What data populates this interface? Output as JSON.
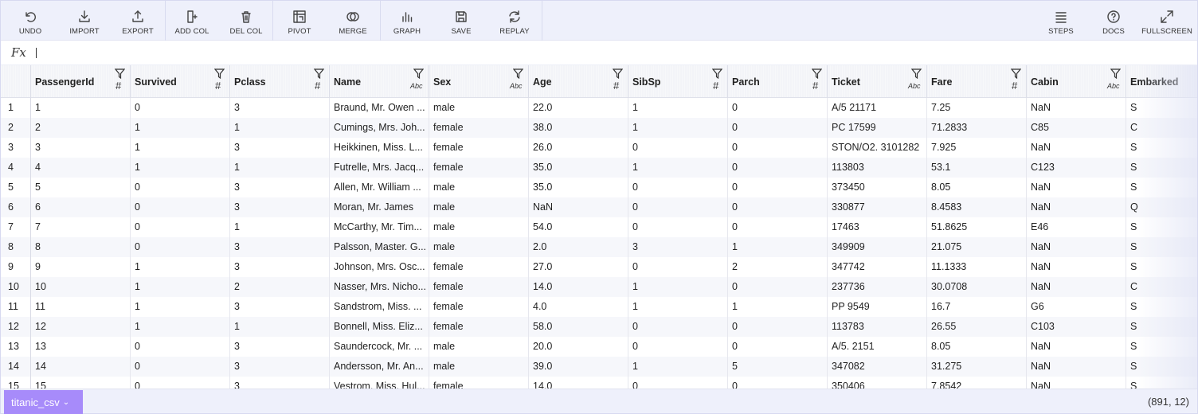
{
  "toolbar": {
    "left": [
      {
        "label": "UNDO",
        "icon": "undo-icon"
      },
      {
        "label": "IMPORT",
        "icon": "import-icon"
      },
      {
        "label": "EXPORT",
        "icon": "export-icon"
      },
      {
        "label": "ADD COL",
        "icon": "add-column-icon"
      },
      {
        "label": "DEL COL",
        "icon": "delete-column-icon"
      },
      {
        "label": "PIVOT",
        "icon": "pivot-icon"
      },
      {
        "label": "MERGE",
        "icon": "merge-icon"
      },
      {
        "label": "GRAPH",
        "icon": "graph-icon"
      },
      {
        "label": "SAVE",
        "icon": "save-icon"
      },
      {
        "label": "REPLAY",
        "icon": "replay-icon"
      }
    ],
    "right": [
      {
        "label": "STEPS",
        "icon": "steps-icon"
      },
      {
        "label": "DOCS",
        "icon": "docs-icon"
      },
      {
        "label": "FULLSCREEN",
        "icon": "fullscreen-icon"
      }
    ]
  },
  "formula_bar": {
    "label": "Fx"
  },
  "columns": [
    {
      "name": "PassengerId",
      "type": "#"
    },
    {
      "name": "Survived",
      "type": "#"
    },
    {
      "name": "Pclass",
      "type": "#"
    },
    {
      "name": "Name",
      "type": "Abc"
    },
    {
      "name": "Sex",
      "type": "Abc"
    },
    {
      "name": "Age",
      "type": "#"
    },
    {
      "name": "SibSp",
      "type": "#"
    },
    {
      "name": "Parch",
      "type": "#"
    },
    {
      "name": "Ticket",
      "type": "Abc"
    },
    {
      "name": "Fare",
      "type": "#"
    },
    {
      "name": "Cabin",
      "type": "Abc"
    },
    {
      "name": "Embarked",
      "type": ""
    }
  ],
  "rows": [
    [
      "1",
      "1",
      "0",
      "3",
      "Braund, Mr. Owen ...",
      "male",
      "22.0",
      "1",
      "0",
      "A/5 21171",
      "7.25",
      "NaN",
      "S"
    ],
    [
      "2",
      "2",
      "1",
      "1",
      "Cumings, Mrs. Joh...",
      "female",
      "38.0",
      "1",
      "0",
      "PC 17599",
      "71.2833",
      "C85",
      "C"
    ],
    [
      "3",
      "3",
      "1",
      "3",
      "Heikkinen, Miss. L...",
      "female",
      "26.0",
      "0",
      "0",
      "STON/O2. 3101282",
      "7.925",
      "NaN",
      "S"
    ],
    [
      "4",
      "4",
      "1",
      "1",
      "Futrelle, Mrs. Jacq...",
      "female",
      "35.0",
      "1",
      "0",
      "113803",
      "53.1",
      "C123",
      "S"
    ],
    [
      "5",
      "5",
      "0",
      "3",
      "Allen, Mr. William ...",
      "male",
      "35.0",
      "0",
      "0",
      "373450",
      "8.05",
      "NaN",
      "S"
    ],
    [
      "6",
      "6",
      "0",
      "3",
      "Moran, Mr. James",
      "male",
      "NaN",
      "0",
      "0",
      "330877",
      "8.4583",
      "NaN",
      "Q"
    ],
    [
      "7",
      "7",
      "0",
      "1",
      "McCarthy, Mr. Tim...",
      "male",
      "54.0",
      "0",
      "0",
      "17463",
      "51.8625",
      "E46",
      "S"
    ],
    [
      "8",
      "8",
      "0",
      "3",
      "Palsson, Master. G...",
      "male",
      "2.0",
      "3",
      "1",
      "349909",
      "21.075",
      "NaN",
      "S"
    ],
    [
      "9",
      "9",
      "1",
      "3",
      "Johnson, Mrs. Osc...",
      "female",
      "27.0",
      "0",
      "2",
      "347742",
      "11.1333",
      "NaN",
      "S"
    ],
    [
      "10",
      "10",
      "1",
      "2",
      "Nasser, Mrs. Nicho...",
      "female",
      "14.0",
      "1",
      "0",
      "237736",
      "30.0708",
      "NaN",
      "C"
    ],
    [
      "11",
      "11",
      "1",
      "3",
      "Sandstrom, Miss. ...",
      "female",
      "4.0",
      "1",
      "1",
      "PP 9549",
      "16.7",
      "G6",
      "S"
    ],
    [
      "12",
      "12",
      "1",
      "1",
      "Bonnell, Miss. Eliz...",
      "female",
      "58.0",
      "0",
      "0",
      "113783",
      "26.55",
      "C103",
      "S"
    ],
    [
      "13",
      "13",
      "0",
      "3",
      "Saundercock, Mr. ...",
      "male",
      "20.0",
      "0",
      "0",
      "A/5. 2151",
      "8.05",
      "NaN",
      "S"
    ],
    [
      "14",
      "14",
      "0",
      "3",
      "Andersson, Mr. An...",
      "male",
      "39.0",
      "1",
      "5",
      "347082",
      "31.275",
      "NaN",
      "S"
    ],
    [
      "15",
      "15",
      "0",
      "3",
      "Vestrom, Miss. Hul...",
      "female",
      "14.0",
      "0",
      "0",
      "350406",
      "7.8542",
      "NaN",
      "S"
    ]
  ],
  "footer": {
    "sheet_name": "titanic_csv",
    "shape": "(891, 12)"
  },
  "colors": {
    "toolbar_bg": "#eef0fb",
    "sheet_tab": "#a78bfa",
    "row_alt": "#f6f7fb"
  }
}
